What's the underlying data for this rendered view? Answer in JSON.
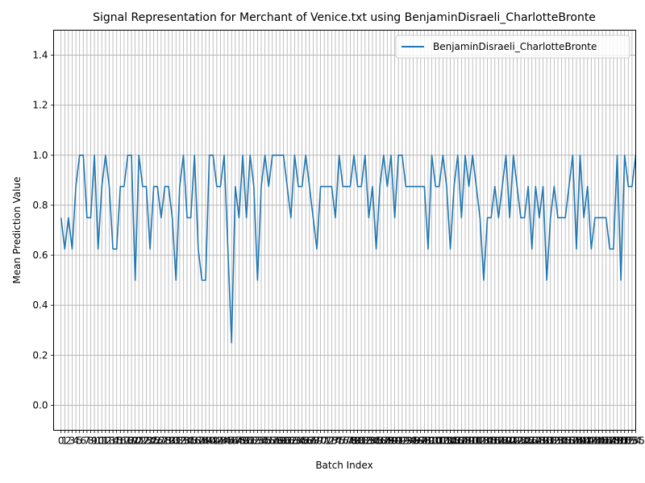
{
  "chart_data": {
    "type": "line",
    "title": "Signal Representation for Merchant of Venice.txt using BenjaminDisraeli_CharlotteBronte",
    "xlabel": "Batch Index",
    "ylabel": "Mean Prediction Value",
    "ylim": [
      -0.1,
      1.5
    ],
    "xlim": [
      -2,
      155
    ],
    "yticks": [
      0.0,
      0.2,
      0.4,
      0.6,
      0.8,
      1.0,
      1.2,
      1.4
    ],
    "ytick_labels": [
      "0.0",
      "0.2",
      "0.4",
      "0.6",
      "0.8",
      "1.0",
      "1.2",
      "1.4"
    ],
    "grid": true,
    "legend_position": "top-right",
    "series": [
      {
        "name": "BenjaminDisraeli_CharlotteBronte",
        "color": "#1f77b4",
        "values": [
          0.75,
          0.625,
          0.75,
          0.625,
          0.875,
          1.0,
          1.0,
          0.75,
          0.75,
          1.0,
          0.625,
          0.875,
          1.0,
          0.875,
          0.625,
          0.625,
          0.875,
          0.875,
          1.0,
          1.0,
          0.5,
          1.0,
          0.875,
          0.875,
          0.625,
          0.875,
          0.875,
          0.75,
          0.875,
          0.875,
          0.75,
          0.5,
          0.875,
          1.0,
          0.75,
          0.75,
          1.0,
          0.625,
          0.5,
          0.5,
          1.0,
          1.0,
          0.875,
          0.875,
          1.0,
          0.625,
          0.25,
          0.875,
          0.75,
          1.0,
          0.75,
          1.0,
          0.875,
          0.5,
          0.875,
          1.0,
          0.875,
          1.0,
          1.0,
          1.0,
          1.0,
          0.875,
          0.75,
          1.0,
          0.875,
          0.875,
          1.0,
          0.875,
          0.75,
          0.625,
          0.875,
          0.875,
          0.875,
          0.875,
          0.75,
          1.0,
          0.875,
          0.875,
          0.875,
          1.0,
          0.875,
          0.875,
          1.0,
          0.75,
          0.875,
          0.625,
          0.875,
          1.0,
          0.875,
          1.0,
          0.75,
          1.0,
          1.0,
          0.875,
          0.875,
          0.875,
          0.875,
          0.875,
          0.875,
          0.625,
          1.0,
          0.875,
          0.875,
          1.0,
          0.875,
          0.625,
          0.875,
          1.0,
          0.75,
          1.0,
          0.875,
          1.0,
          0.875,
          0.75,
          0.5,
          0.75,
          0.75,
          0.875,
          0.75,
          0.875,
          1.0,
          0.75,
          1.0,
          0.875,
          0.75,
          0.75,
          0.875,
          0.625,
          0.875,
          0.75,
          0.875,
          0.5,
          0.75,
          0.875,
          0.75,
          0.75,
          0.75,
          0.875,
          1.0,
          0.625,
          1.0,
          0.75,
          0.875,
          0.625,
          0.75,
          0.75,
          0.75,
          0.75,
          0.625,
          0.625,
          1.0,
          0.5,
          1.0,
          0.875,
          0.875,
          1.0
        ]
      }
    ]
  }
}
